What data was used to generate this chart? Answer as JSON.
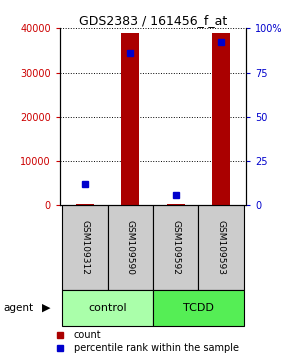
{
  "title": "GDS2383 / 161456_f_at",
  "samples": [
    "GSM109312",
    "GSM109590",
    "GSM109592",
    "GSM109593"
  ],
  "count_values": [
    200,
    39000,
    400,
    39000
  ],
  "percentile_values": [
    12,
    86,
    6,
    92
  ],
  "ylim_left": [
    0,
    40000
  ],
  "ylim_right": [
    0,
    100
  ],
  "yticks_left": [
    0,
    10000,
    20000,
    30000,
    40000
  ],
  "yticks_right": [
    0,
    25,
    50,
    75,
    100
  ],
  "ytick_labels_left": [
    "0",
    "10000",
    "20000",
    "30000",
    "40000"
  ],
  "ytick_labels_right": [
    "0",
    "25",
    "50",
    "75",
    "100%"
  ],
  "bar_color": "#aa0000",
  "dot_color": "#0000cc",
  "bar_width": 0.4,
  "groups": [
    {
      "label": "control",
      "samples": [
        0,
        1
      ],
      "color": "#aaffaa"
    },
    {
      "label": "TCDD",
      "samples": [
        2,
        3
      ],
      "color": "#55ee55"
    }
  ],
  "agent_label": "agent",
  "legend_count_label": "count",
  "legend_percentile_label": "percentile rank within the sample",
  "left_tick_color": "#cc0000",
  "right_tick_color": "#0000cc",
  "sample_box_color": "#cccccc"
}
